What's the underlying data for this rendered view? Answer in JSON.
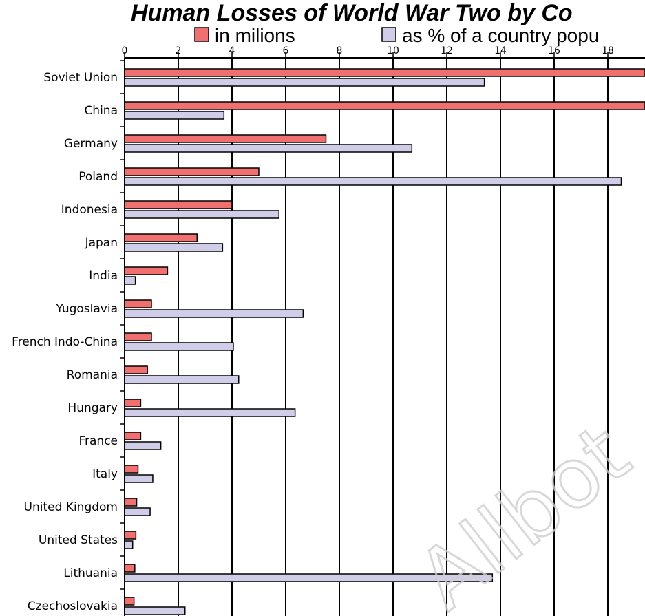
{
  "chart_data": {
    "type": "bar",
    "orientation": "horizontal",
    "title": "Human Losses of World War Two by Co",
    "categories": [
      "Soviet Union",
      "China",
      "Germany",
      "Poland",
      "Indonesia",
      "Japan",
      "India",
      "Yugoslavia",
      "French Indo-China",
      "Romania",
      "Hungary",
      "France",
      "Italy",
      "United Kingdom",
      "United States",
      "Lithuania",
      "Czechoslovakia"
    ],
    "series": [
      {
        "name": "in milions",
        "color": "#f07070",
        "values": [
          20,
          20,
          7.5,
          5.0,
          4.0,
          2.7,
          1.6,
          1.0,
          1.0,
          0.85,
          0.6,
          0.6,
          0.5,
          0.45,
          0.42,
          0.38,
          0.35
        ]
      },
      {
        "name": "as % of a country popu",
        "color": "#d0cde8",
        "values": [
          13.4,
          3.7,
          10.7,
          18.5,
          5.75,
          3.65,
          0.4,
          6.65,
          4.05,
          4.25,
          6.35,
          1.35,
          1.05,
          0.95,
          0.3,
          13.7,
          2.25
        ]
      }
    ],
    "xlim": [
      0,
      19.5
    ],
    "xticks": [
      "0",
      "2",
      "4",
      "6",
      "8",
      "10",
      "12",
      "14",
      "16",
      "18"
    ],
    "grid": true,
    "legend_position": "top"
  },
  "watermark": "Allbot"
}
